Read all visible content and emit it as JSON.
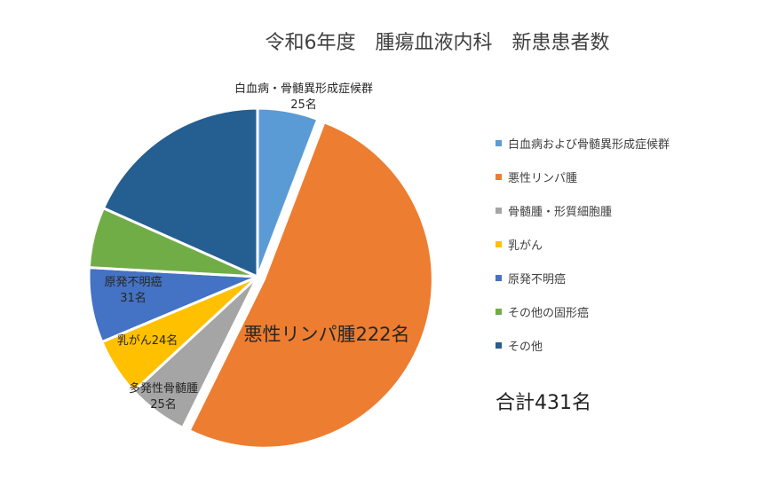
{
  "chart_data": {
    "type": "pie",
    "title": "令和6年度　腫瘍血液内科　新患患者数",
    "legend_position": "right",
    "total_label": "合計431名",
    "slices": [
      {
        "name": "白血病および骨髄異形成症候群",
        "value": 25,
        "color": "#5B9BD5",
        "label_lines": [
          "白血病・骨髄異形成症候群",
          "25名"
        ]
      },
      {
        "name": "悪性リンパ腫",
        "value": 222,
        "color": "#ED7D31",
        "label_lines": [
          "悪性リンパ腫222名"
        ]
      },
      {
        "name": "骨髄腫・形質細胞腫",
        "value": 25,
        "color": "#A5A5A5",
        "label_lines": [
          "多発性骨髄腫",
          "25名"
        ]
      },
      {
        "name": "乳がん",
        "value": 24,
        "color": "#FFC000",
        "label_lines": [
          "乳がん24名"
        ]
      },
      {
        "name": "原発不明癌",
        "value": 31,
        "color": "#4472C4",
        "label_lines": [
          "原発不明癌",
          "31名"
        ]
      },
      {
        "name": "その他の固形癌",
        "value": 25,
        "color": "#70AD47",
        "label_lines": []
      },
      {
        "name": "その他",
        "value": 79,
        "color": "#255E91",
        "label_lines": []
      }
    ]
  }
}
